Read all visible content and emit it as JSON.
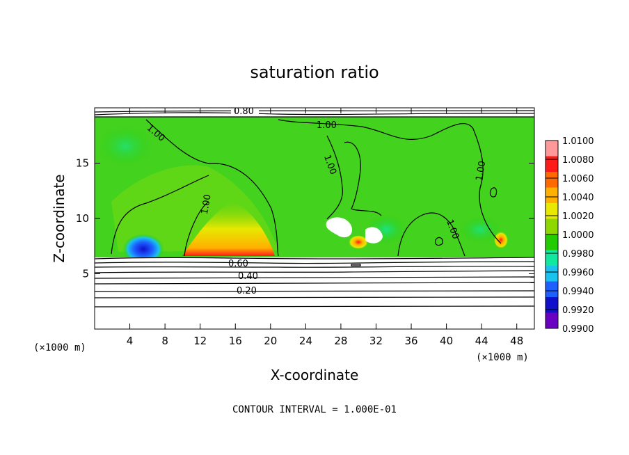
{
  "chart_data": {
    "type": "heatmap",
    "title": "saturation ratio",
    "xlabel": "X-coordinate",
    "ylabel": "Z-coordinate",
    "x_units": "(×1000 m)",
    "y_units": "(×1000 m)",
    "xlim": [
      0,
      50
    ],
    "ylim": [
      0,
      20
    ],
    "x_ticks": [
      4,
      8,
      12,
      16,
      20,
      24,
      28,
      32,
      36,
      40,
      44,
      48
    ],
    "y_ticks": [
      5,
      10,
      15
    ],
    "colorbar": {
      "labels": [
        "1.0100",
        "1.0080",
        "1.0060",
        "1.0040",
        "1.0020",
        "1.0000",
        "0.9980",
        "0.9960",
        "0.9940",
        "0.9920",
        "0.9900"
      ],
      "colors": [
        "#ff9999",
        "#ff1a1a",
        "#ff6a00",
        "#ffb000",
        "#e8e800",
        "#8ed800",
        "#22cc00",
        "#10e8a0",
        "#18c4ee",
        "#1e60ff",
        "#1010cc",
        "#6a00c0"
      ]
    },
    "contour_labels": [
      "0.80",
      "1.00",
      "1.00",
      "1.00",
      "1.00",
      "1.00",
      "1.00",
      "0.60",
      "0.40",
      "0.20"
    ],
    "contour_interval": "CONTOUR INTERVAL = 1.000E-01"
  }
}
